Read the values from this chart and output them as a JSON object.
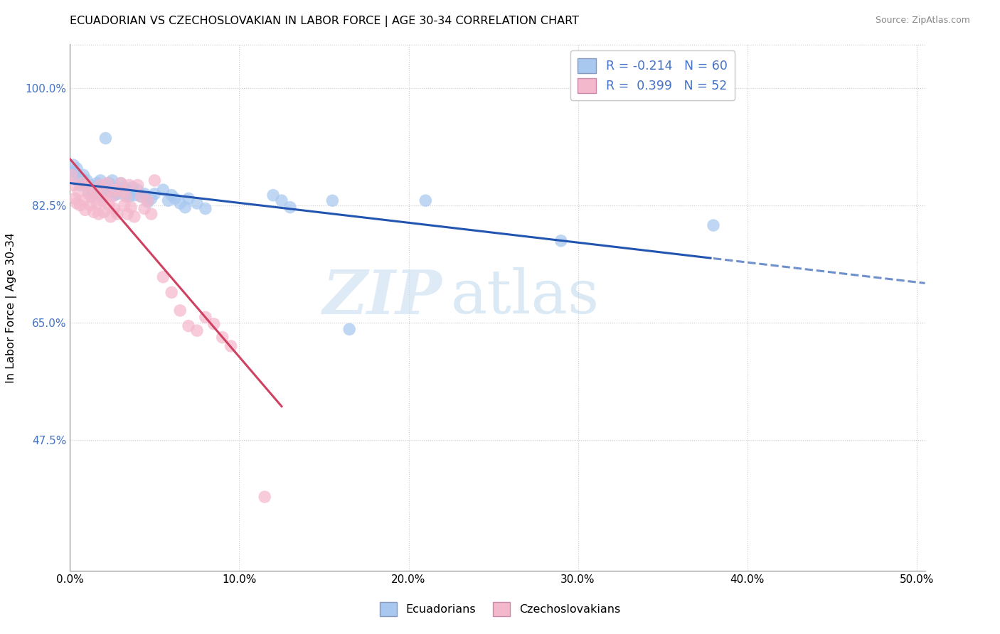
{
  "title": "ECUADORIAN VS CZECHOSLOVAKIAN IN LABOR FORCE | AGE 30-34 CORRELATION CHART",
  "source": "Source: ZipAtlas.com",
  "ylabel": "In Labor Force | Age 30-34",
  "xmin": 0.0,
  "xmax": 0.505,
  "ymin": 0.28,
  "ymax": 1.065,
  "yticks": [
    0.475,
    0.65,
    0.825,
    1.0
  ],
  "ytick_labels": [
    "47.5%",
    "65.0%",
    "82.5%",
    "100.0%"
  ],
  "xticks": [
    0.0,
    0.1,
    0.2,
    0.3,
    0.4,
    0.5
  ],
  "xtick_labels": [
    "0.0%",
    "10.0%",
    "20.0%",
    "30.0%",
    "40.0%",
    "50.0%"
  ],
  "blue_r": -0.214,
  "blue_n": 60,
  "pink_r": 0.399,
  "pink_n": 52,
  "blue_fill": "#a8c8f0",
  "pink_fill": "#f4b8cc",
  "blue_line": "#2255b0",
  "pink_line": "#d04060",
  "blue_scatter": [
    [
      0.001,
      0.87
    ],
    [
      0.002,
      0.885
    ],
    [
      0.003,
      0.875
    ],
    [
      0.004,
      0.88
    ],
    [
      0.005,
      0.86
    ],
    [
      0.006,
      0.855
    ],
    [
      0.007,
      0.865
    ],
    [
      0.008,
      0.87
    ],
    [
      0.009,
      0.858
    ],
    [
      0.01,
      0.862
    ],
    [
      0.011,
      0.845
    ],
    [
      0.012,
      0.855
    ],
    [
      0.013,
      0.84
    ],
    [
      0.014,
      0.848
    ],
    [
      0.015,
      0.852
    ],
    [
      0.016,
      0.858
    ],
    [
      0.017,
      0.845
    ],
    [
      0.018,
      0.862
    ],
    [
      0.019,
      0.838
    ],
    [
      0.02,
      0.855
    ],
    [
      0.021,
      0.925
    ],
    [
      0.022,
      0.848
    ],
    [
      0.023,
      0.858
    ],
    [
      0.024,
      0.845
    ],
    [
      0.025,
      0.862
    ],
    [
      0.026,
      0.84
    ],
    [
      0.027,
      0.85
    ],
    [
      0.028,
      0.842
    ],
    [
      0.03,
      0.858
    ],
    [
      0.031,
      0.845
    ],
    [
      0.032,
      0.852
    ],
    [
      0.033,
      0.84
    ],
    [
      0.034,
      0.848
    ],
    [
      0.035,
      0.838
    ],
    [
      0.036,
      0.845
    ],
    [
      0.037,
      0.852
    ],
    [
      0.038,
      0.84
    ],
    [
      0.04,
      0.848
    ],
    [
      0.042,
      0.838
    ],
    [
      0.044,
      0.842
    ],
    [
      0.046,
      0.83
    ],
    [
      0.048,
      0.835
    ],
    [
      0.05,
      0.842
    ],
    [
      0.055,
      0.848
    ],
    [
      0.058,
      0.832
    ],
    [
      0.06,
      0.84
    ],
    [
      0.062,
      0.835
    ],
    [
      0.065,
      0.828
    ],
    [
      0.068,
      0.822
    ],
    [
      0.07,
      0.835
    ],
    [
      0.075,
      0.828
    ],
    [
      0.08,
      0.82
    ],
    [
      0.12,
      0.84
    ],
    [
      0.125,
      0.832
    ],
    [
      0.13,
      0.822
    ],
    [
      0.155,
      0.832
    ],
    [
      0.165,
      0.64
    ],
    [
      0.21,
      0.832
    ],
    [
      0.29,
      0.772
    ],
    [
      0.38,
      0.795
    ]
  ],
  "pink_scatter": [
    [
      0.001,
      0.87
    ],
    [
      0.002,
      0.855
    ],
    [
      0.003,
      0.835
    ],
    [
      0.004,
      0.828
    ],
    [
      0.005,
      0.845
    ],
    [
      0.006,
      0.825
    ],
    [
      0.007,
      0.858
    ],
    [
      0.008,
      0.832
    ],
    [
      0.009,
      0.818
    ],
    [
      0.01,
      0.855
    ],
    [
      0.011,
      0.842
    ],
    [
      0.012,
      0.825
    ],
    [
      0.013,
      0.838
    ],
    [
      0.014,
      0.815
    ],
    [
      0.015,
      0.845
    ],
    [
      0.016,
      0.828
    ],
    [
      0.017,
      0.812
    ],
    [
      0.018,
      0.855
    ],
    [
      0.019,
      0.832
    ],
    [
      0.02,
      0.815
    ],
    [
      0.021,
      0.842
    ],
    [
      0.022,
      0.858
    ],
    [
      0.023,
      0.825
    ],
    [
      0.024,
      0.808
    ],
    [
      0.025,
      0.838
    ],
    [
      0.026,
      0.82
    ],
    [
      0.027,
      0.848
    ],
    [
      0.028,
      0.812
    ],
    [
      0.03,
      0.858
    ],
    [
      0.031,
      0.845
    ],
    [
      0.032,
      0.825
    ],
    [
      0.033,
      0.838
    ],
    [
      0.034,
      0.812
    ],
    [
      0.035,
      0.855
    ],
    [
      0.036,
      0.822
    ],
    [
      0.038,
      0.808
    ],
    [
      0.04,
      0.855
    ],
    [
      0.042,
      0.838
    ],
    [
      0.044,
      0.82
    ],
    [
      0.046,
      0.832
    ],
    [
      0.048,
      0.812
    ],
    [
      0.05,
      0.862
    ],
    [
      0.055,
      0.718
    ],
    [
      0.06,
      0.695
    ],
    [
      0.065,
      0.668
    ],
    [
      0.07,
      0.645
    ],
    [
      0.075,
      0.638
    ],
    [
      0.08,
      0.658
    ],
    [
      0.085,
      0.648
    ],
    [
      0.09,
      0.628
    ],
    [
      0.095,
      0.615
    ],
    [
      0.115,
      0.39
    ]
  ],
  "watermark_zip": "ZIP",
  "watermark_atlas": "atlas"
}
